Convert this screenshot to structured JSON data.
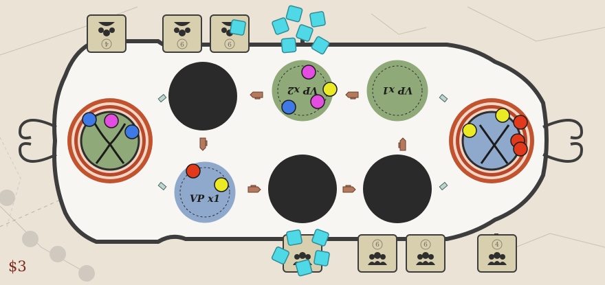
{
  "hud": {
    "money": "$3"
  },
  "top_tiles": [
    {
      "id": "top-1",
      "count": "4",
      "icon": "meeple-group-icon",
      "rotated": true
    },
    {
      "id": "top-2",
      "count": "9",
      "icon": "meeple-group-icon",
      "rotated": true
    },
    {
      "id": "top-3",
      "count": "9",
      "icon": "meeple-group-icon",
      "rotated": true
    }
  ],
  "bottom_tiles": [
    {
      "id": "bottom-1",
      "count": "6",
      "icon": "people-group-icon"
    },
    {
      "id": "bottom-2",
      "count": "6",
      "icon": "people-group-icon"
    },
    {
      "id": "bottom-3",
      "count": "4",
      "icon": "people-group-icon"
    }
  ],
  "spaces": {
    "vp_top_middle": {
      "label": "VP x2",
      "rotated": true,
      "color": "#8fa979"
    },
    "vp_top_right": {
      "label": "VP x1",
      "rotated": true,
      "color": "#8fa979"
    },
    "vp_bottom_left": {
      "label": "VP x1",
      "rotated": false,
      "color": "#8ea9cc"
    }
  },
  "colors": {
    "cyan": "#4fd8e6",
    "magenta": "#e44ee0",
    "yellow": "#ecea25",
    "blue": "#3f79e6",
    "red": "#e0391c",
    "green_space": "#8fa979",
    "blue_space": "#8ea9cc",
    "track": "#3d3d3d",
    "empty_slot": "#2a2a2a"
  }
}
